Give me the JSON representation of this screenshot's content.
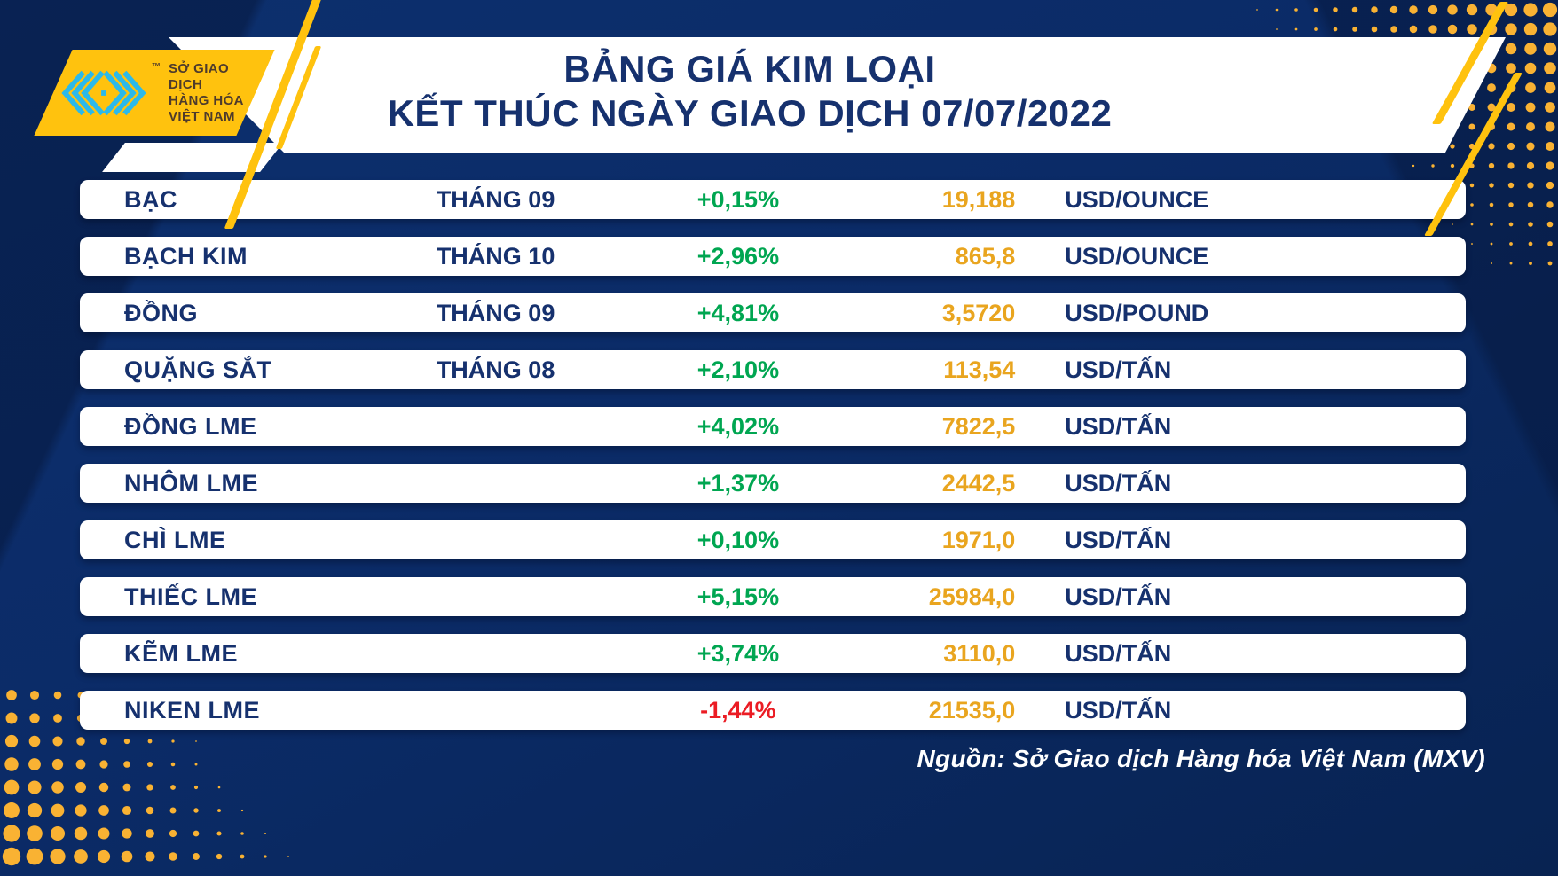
{
  "colors": {
    "background_navy": "#0B2B67",
    "panel_white": "#FFFFFF",
    "brand_yellow": "#FFC20E",
    "dots_yellow": "#F9B233",
    "brand_cyan": "#2CB9EA",
    "navy_text": "#16316E",
    "up_green": "#00A651",
    "down_red": "#EB1C24",
    "price_gold": "#E9A51F",
    "logo_text_brown": "#4E3B2C"
  },
  "header": {
    "logo": {
      "icon": "mxv-chevron-mark",
      "trademark": "™",
      "org_line1": "SỞ GIAO DỊCH",
      "org_line2": "HÀNG HÓA",
      "org_line3": "VIỆT NAM"
    }
  },
  "chart_data": {
    "type": "table",
    "title": "BẢNG GIÁ KIM LOẠI",
    "subtitle": "KẾT THÚC NGÀY GIAO DỊCH 07/07/2022",
    "date": "07/07/2022",
    "columns": [
      "name",
      "month",
      "change",
      "price",
      "unit"
    ],
    "rows": [
      {
        "name": "BẠC",
        "month": "THÁNG 09",
        "change": "+0,15%",
        "direction": "up",
        "price": "19,188",
        "unit": "USD/OUNCE"
      },
      {
        "name": "BẠCH KIM",
        "month": "THÁNG 10",
        "change": "+2,96%",
        "direction": "up",
        "price": "865,8",
        "unit": "USD/OUNCE"
      },
      {
        "name": "ĐỒNG",
        "month": "THÁNG 09",
        "change": "+4,81%",
        "direction": "up",
        "price": "3,5720",
        "unit": "USD/POUND"
      },
      {
        "name": "QUẶNG SẮT",
        "month": "THÁNG 08",
        "change": "+2,10%",
        "direction": "up",
        "price": "113,54",
        "unit": "USD/TẤN"
      },
      {
        "name": "ĐỒNG LME",
        "month": "",
        "change": "+4,02%",
        "direction": "up",
        "price": "7822,5",
        "unit": "USD/TẤN"
      },
      {
        "name": "NHÔM LME",
        "month": "",
        "change": "+1,37%",
        "direction": "up",
        "price": "2442,5",
        "unit": "USD/TẤN"
      },
      {
        "name": "CHÌ LME",
        "month": "",
        "change": "+0,10%",
        "direction": "up",
        "price": "1971,0",
        "unit": "USD/TẤN"
      },
      {
        "name": "THIẾC LME",
        "month": "",
        "change": "+5,15%",
        "direction": "up",
        "price": "25984,0",
        "unit": "USD/TẤN"
      },
      {
        "name": "KẼM LME",
        "month": "",
        "change": "+3,74%",
        "direction": "up",
        "price": "3110,0",
        "unit": "USD/TẤN"
      },
      {
        "name": "NIKEN LME",
        "month": "",
        "change": "-1,44%",
        "direction": "down",
        "price": "21535,0",
        "unit": "USD/TẤN"
      }
    ],
    "source": "Nguồn: Sở Giao dịch Hàng hóa Việt Nam (MXV)"
  }
}
